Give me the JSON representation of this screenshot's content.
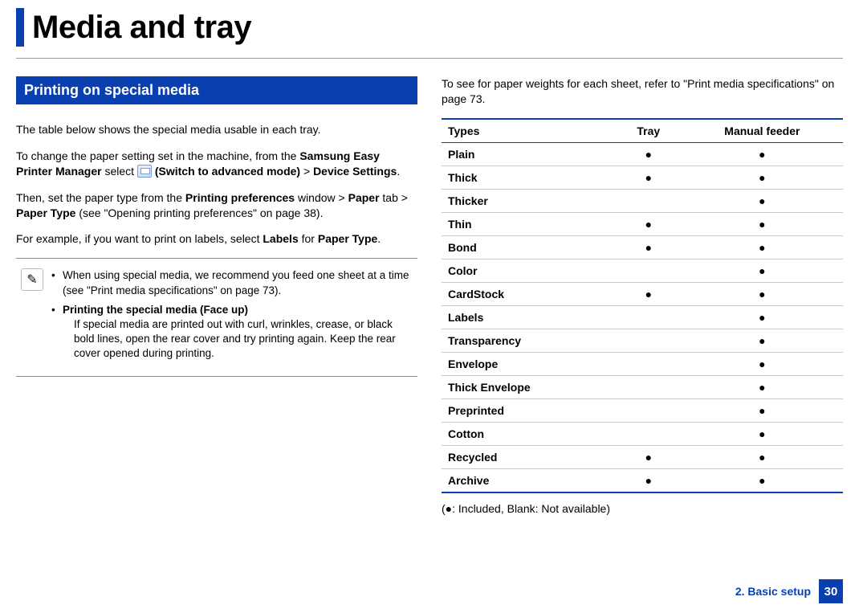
{
  "colors": {
    "brand": "#0a3fb0",
    "rule": "#888888",
    "text": "#000000"
  },
  "page_title": "Media and tray",
  "section_banner": "Printing on special media",
  "left": {
    "p1": "The table below shows the special media usable in each tray.",
    "p2_pre": "To change the paper setting set in the machine, from the ",
    "p2_b1": "Samsung Easy Printer Manager",
    "p2_mid": "  select  ",
    "p2_b2": "(Switch to advanced mode)",
    "p2_gt": " >  ",
    "p2_b3": "Device Settings",
    "p2_end": ".",
    "p3_pre": "Then, set the paper type from the ",
    "p3_b1": "Printing preferences",
    "p3_mid1": " window > ",
    "p3_b2": "Paper",
    "p3_mid2": " tab > ",
    "p3_b3": "Paper Type",
    "p3_post": " (see \"Opening printing preferences\" on page 38).",
    "p4_pre": "For example, if you want to print on labels, select ",
    "p4_b1": "Labels",
    "p4_mid": " for ",
    "p4_b2": "Paper Type",
    "p4_end": "."
  },
  "note": {
    "item1": "When using special media, we recommend you feed one sheet at a time (see \"Print media specifications\" on page 73).",
    "item2_title": "Printing the special media (Face up)",
    "item2_body": "If special media are printed out with curl, wrinkles, crease, or black bold lines, open the rear cover and try printing again. Keep the rear cover opened during printing."
  },
  "right_intro": "To see for paper weights for each sheet, refer to \"Print media specifications\" on page 73.",
  "table": {
    "headers": [
      "Types",
      "Tray",
      "Manual feeder"
    ],
    "rows": [
      {
        "type": "Plain",
        "tray": "●",
        "manual": "●"
      },
      {
        "type": "Thick",
        "tray": "●",
        "manual": "●"
      },
      {
        "type": "Thicker",
        "tray": "",
        "manual": "●"
      },
      {
        "type": "Thin",
        "tray": "●",
        "manual": "●"
      },
      {
        "type": "Bond",
        "tray": "●",
        "manual": "●"
      },
      {
        "type": "Color",
        "tray": "",
        "manual": "●"
      },
      {
        "type": "CardStock",
        "tray": "●",
        "manual": "●"
      },
      {
        "type": "Labels",
        "tray": "",
        "manual": "●"
      },
      {
        "type": "Transparency",
        "tray": "",
        "manual": "●"
      },
      {
        "type": "Envelope",
        "tray": "",
        "manual": "●"
      },
      {
        "type": "Thick Envelope",
        "tray": "",
        "manual": "●"
      },
      {
        "type": "Preprinted",
        "tray": "",
        "manual": "●"
      },
      {
        "type": "Cotton",
        "tray": "",
        "manual": "●"
      },
      {
        "type": "Recycled",
        "tray": "●",
        "manual": "●"
      },
      {
        "type": "Archive",
        "tray": "●",
        "manual": "●"
      }
    ],
    "legend": "(●: Included, Blank: Not available)"
  },
  "footer": {
    "chapter": "2. Basic setup",
    "page": "30"
  }
}
